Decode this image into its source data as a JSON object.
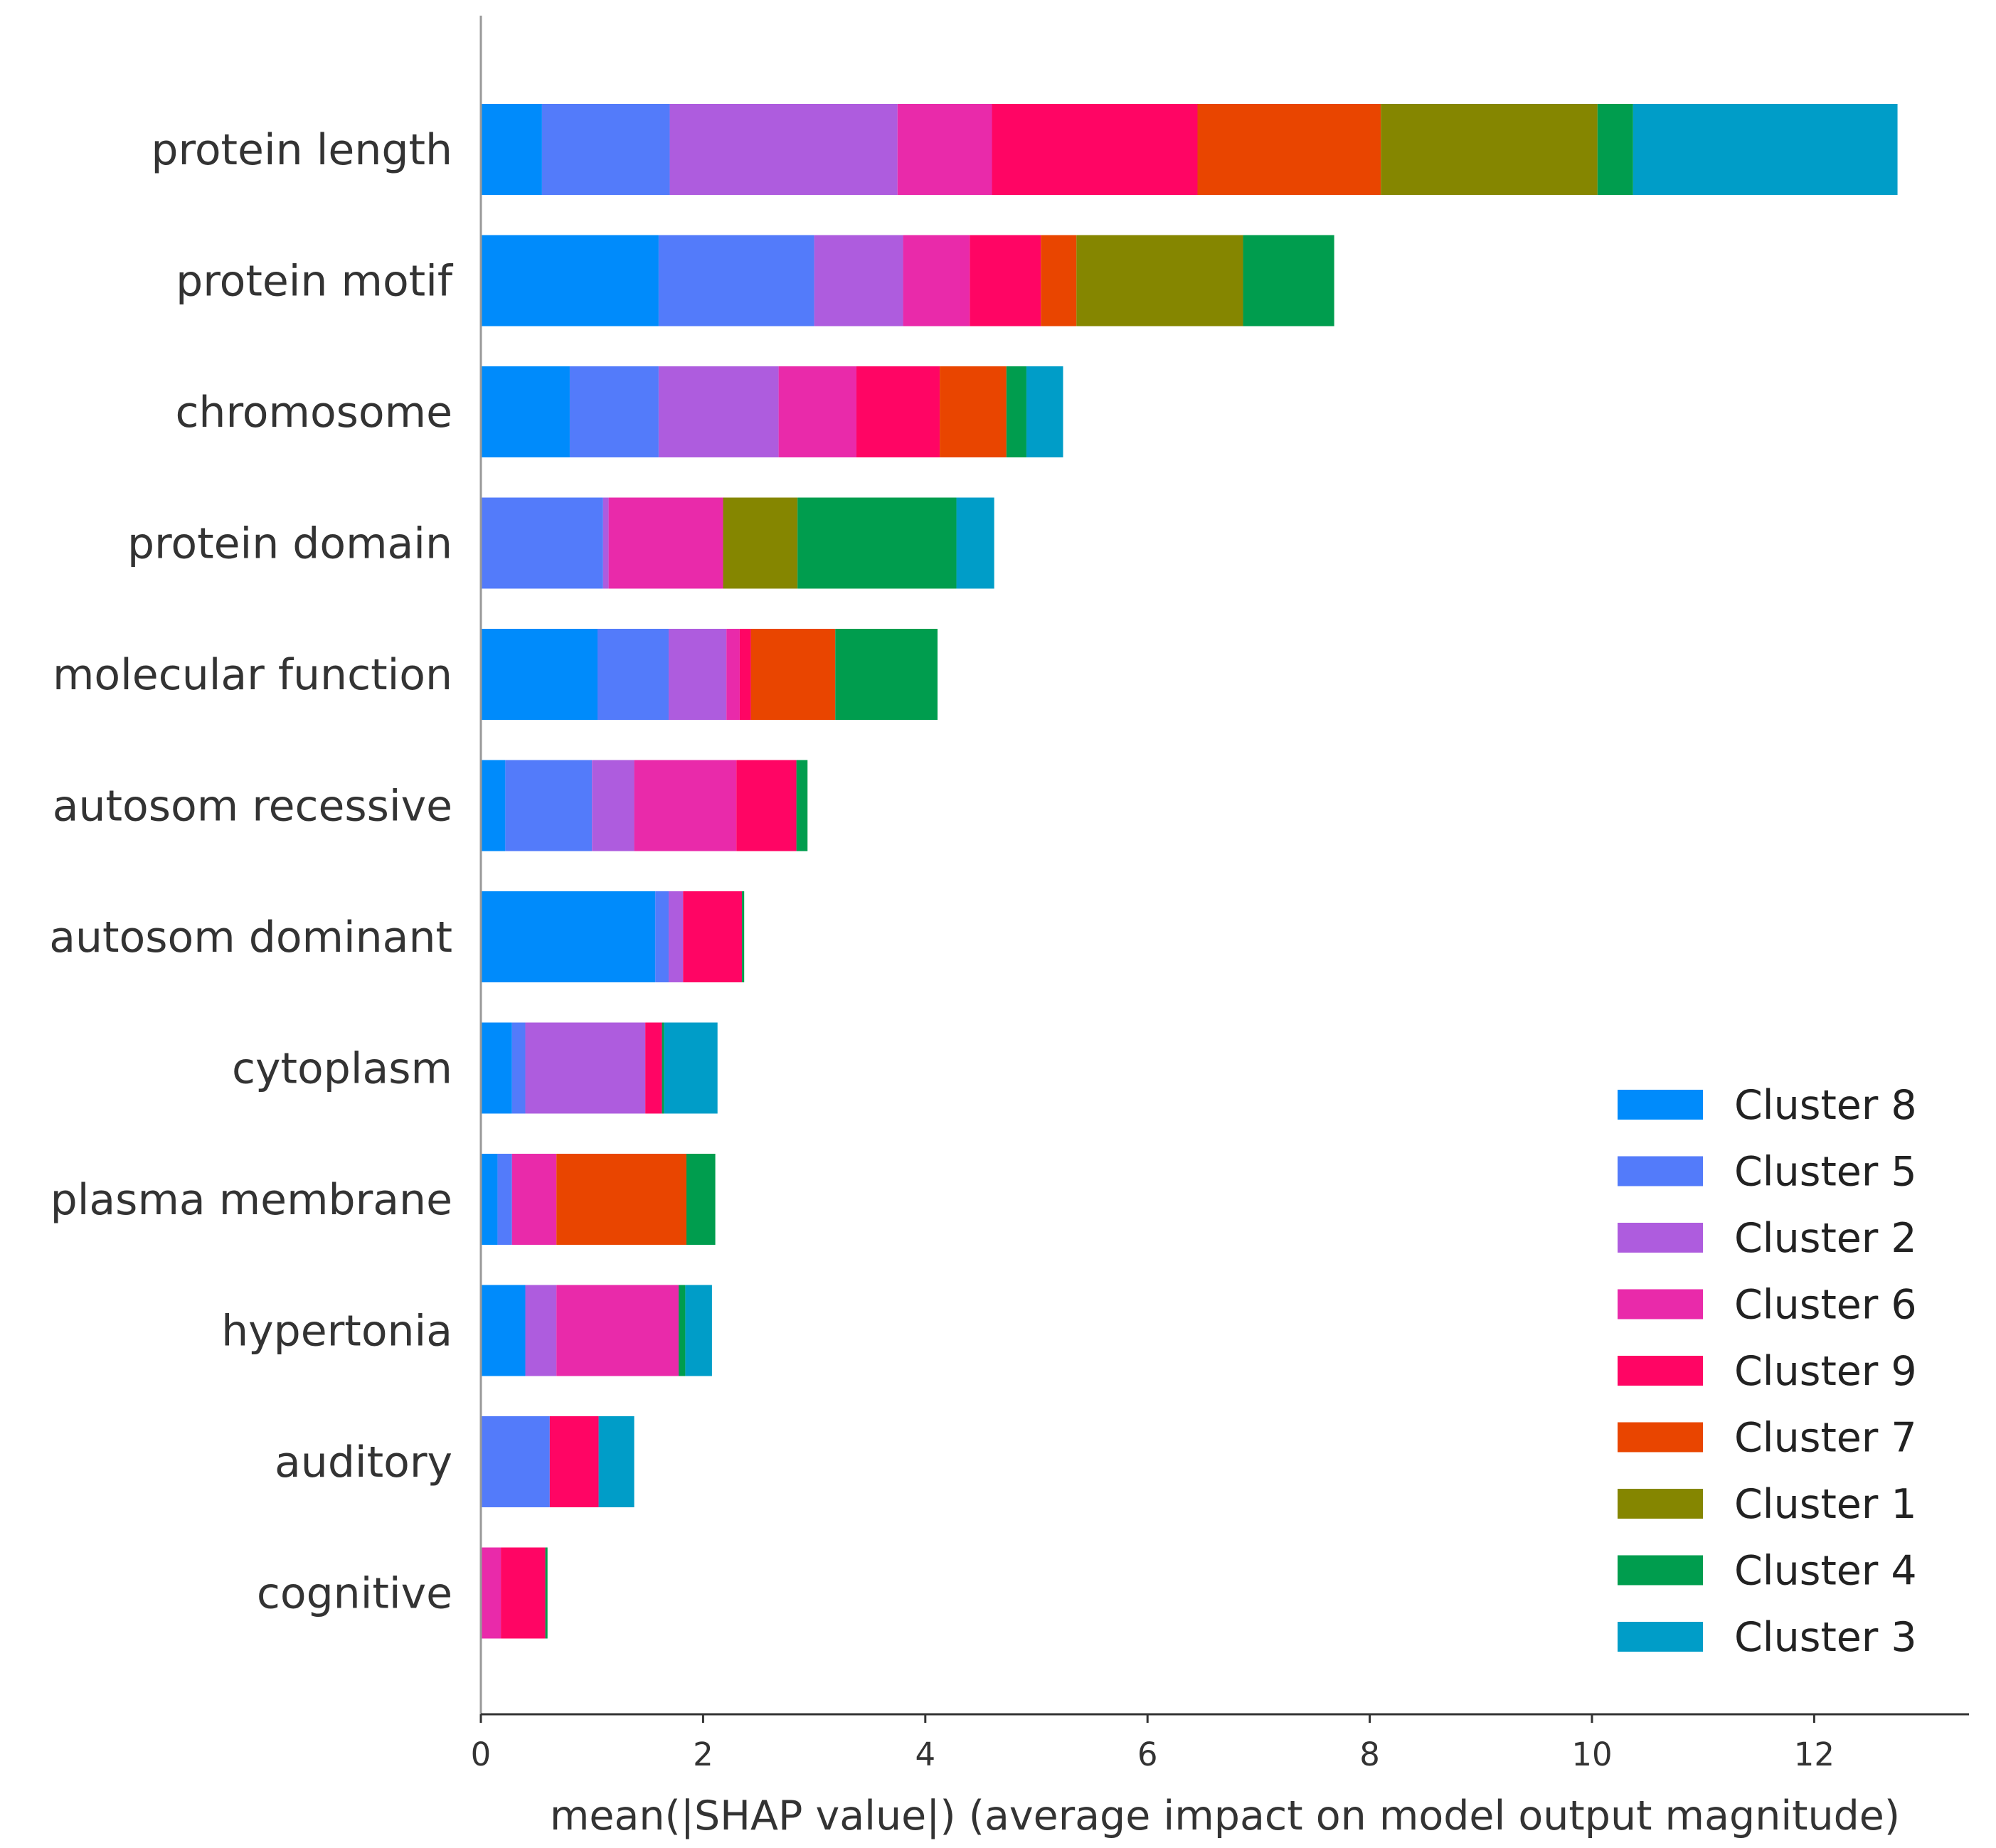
{
  "chart_data": {
    "type": "bar",
    "orientation": "horizontal",
    "stacked": true,
    "title": "",
    "xlabel": "mean(|SHAP value|) (average impact on model output magnitude)",
    "ylabel": "",
    "xlim": [
      0,
      13.4
    ],
    "xticks": [
      0,
      2,
      4,
      6,
      8,
      10,
      12
    ],
    "grid": false,
    "legend_position": "bottom-right",
    "categories": [
      "protein length",
      "protein motif",
      "chromosome",
      "protein domain",
      "molecular function",
      "autosom recessive",
      "autosom dominant",
      "cytoplasm",
      "plasma membrane",
      "hypertonia",
      "auditory",
      "cognitive"
    ],
    "series": [
      {
        "name": "Cluster 8",
        "color": "#008bfb",
        "values": [
          0.55,
          1.6,
          0.8,
          0.0,
          1.05,
          0.22,
          1.57,
          0.28,
          0.15,
          0.4,
          0.0,
          0.0
        ]
      },
      {
        "name": "Cluster 5",
        "color": "#537bfa",
        "values": [
          1.15,
          1.4,
          0.8,
          1.1,
          0.64,
          0.78,
          0.12,
          0.12,
          0.13,
          0.0,
          0.62,
          0.0
        ]
      },
      {
        "name": "Cluster 2",
        "color": "#ae5cde",
        "values": [
          2.05,
          0.8,
          1.08,
          0.05,
          0.52,
          0.38,
          0.13,
          1.08,
          0.0,
          0.28,
          0.0,
          0.0
        ]
      },
      {
        "name": "Cluster 6",
        "color": "#e92aaa",
        "values": [
          0.85,
          0.6,
          0.7,
          1.03,
          0.12,
          0.92,
          0.0,
          0.0,
          0.4,
          1.1,
          0.0,
          0.18
        ]
      },
      {
        "name": "Cluster 9",
        "color": "#ff0564",
        "values": [
          1.85,
          0.64,
          0.75,
          0.0,
          0.1,
          0.54,
          0.53,
          0.15,
          0.0,
          0.0,
          0.44,
          0.4
        ]
      },
      {
        "name": "Cluster 7",
        "color": "#e94500",
        "values": [
          1.65,
          0.32,
          0.6,
          0.0,
          0.76,
          0.0,
          0.0,
          0.0,
          1.17,
          0.0,
          0.0,
          0.0
        ]
      },
      {
        "name": "Cluster 1",
        "color": "#858600",
        "values": [
          1.95,
          1.5,
          0.0,
          0.67,
          0.0,
          0.0,
          0.0,
          0.0,
          0.0,
          0.0,
          0.0,
          0.0
        ]
      },
      {
        "name": "Cluster 4",
        "color": "#009d4e",
        "values": [
          0.32,
          0.82,
          0.18,
          1.43,
          0.92,
          0.1,
          0.02,
          0.02,
          0.26,
          0.06,
          0.0,
          0.02
        ]
      },
      {
        "name": "Cluster 3",
        "color": "#009dc8",
        "values": [
          2.38,
          0.0,
          0.33,
          0.34,
          0.0,
          0.0,
          0.0,
          0.48,
          0.0,
          0.24,
          0.32,
          0.0
        ]
      }
    ]
  }
}
